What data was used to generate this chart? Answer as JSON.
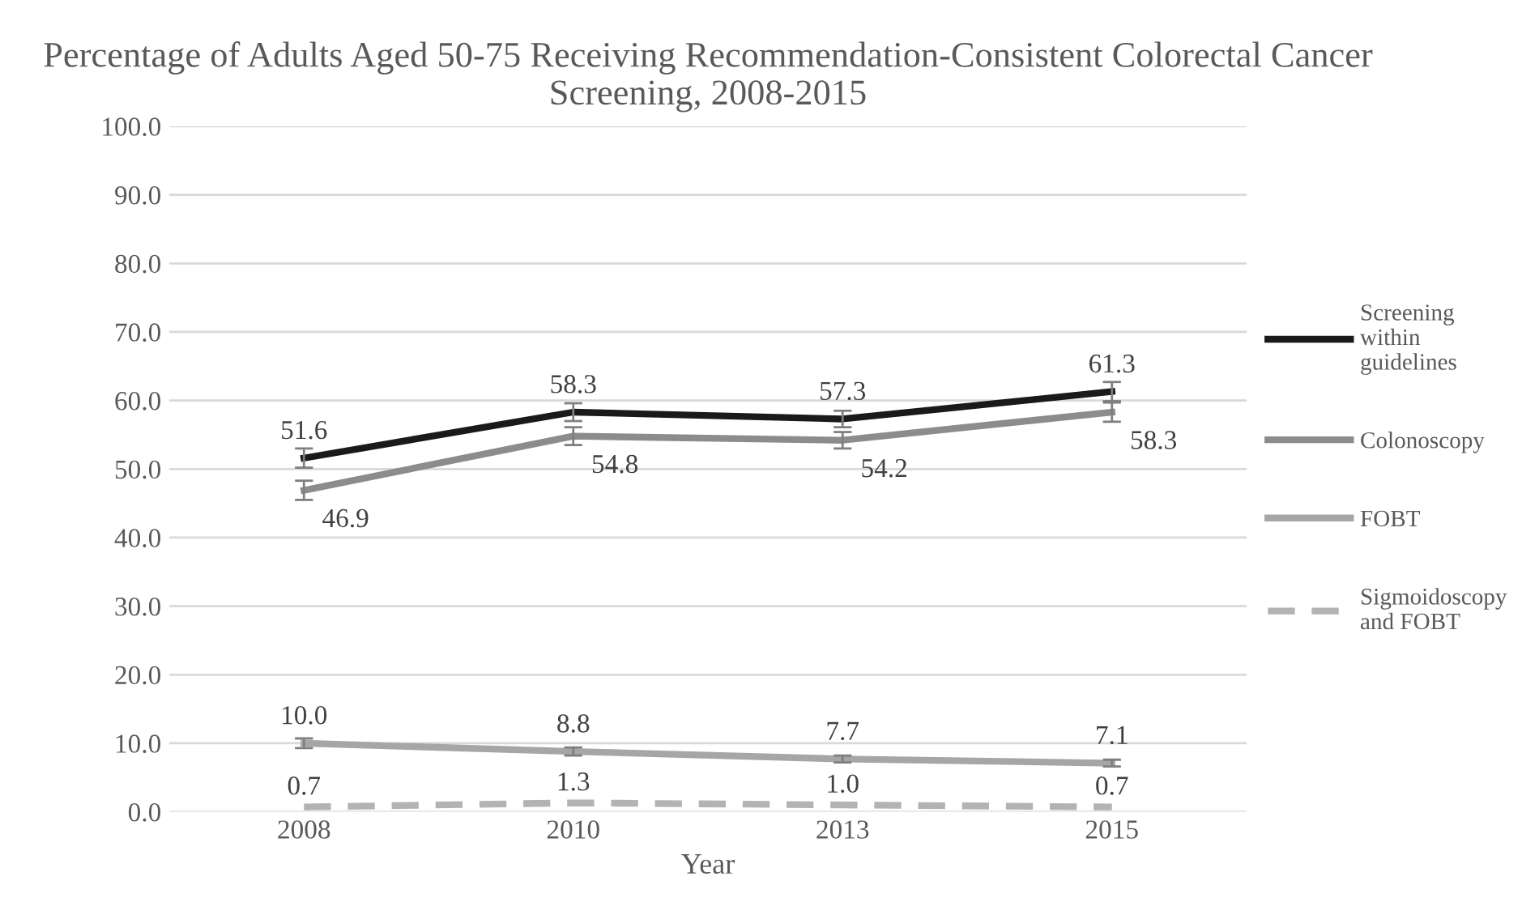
{
  "chart_data": {
    "type": "line",
    "title": "Percentage of Adults Aged 50-75 Receiving Recommendation-Consistent Colorectal Cancer Screening, 2008-2015",
    "xlabel": "Year",
    "categories": [
      "2008",
      "2010",
      "2013",
      "2015"
    ],
    "series": [
      {
        "name": "Screening within guidelines",
        "color": "#1a1a1a",
        "values": [
          51.6,
          58.3,
          57.3,
          61.3
        ],
        "value_labels": [
          "51.6",
          "58.3",
          "57.3",
          "61.3"
        ],
        "errors": [
          1.4,
          1.3,
          1.2,
          1.4
        ]
      },
      {
        "name": "Colonoscopy",
        "color": "#8c8c8c",
        "values": [
          46.9,
          54.8,
          54.2,
          58.3
        ],
        "value_labels": [
          "46.9",
          "54.8",
          "54.2",
          "58.3"
        ],
        "errors": [
          1.4,
          1.3,
          1.2,
          1.4
        ]
      },
      {
        "name": "FOBT",
        "color": "#a6a6a6",
        "values": [
          10.0,
          8.8,
          7.7,
          7.1
        ],
        "value_labels": [
          "10.0",
          "8.8",
          "7.7",
          "7.1"
        ],
        "errors": [
          0.7,
          0.6,
          0.5,
          0.5
        ]
      },
      {
        "name": "Sigmoidoscopy and FOBT",
        "color": "#b3b3b3",
        "values": [
          0.7,
          1.3,
          1.0,
          0.7
        ],
        "value_labels": [
          "0.7",
          "1.3",
          "1.0",
          "0.7"
        ],
        "line_style": "dashed"
      }
    ],
    "ylim": [
      0,
      100
    ],
    "yticks": [
      {
        "value": 0,
        "label": "0.0"
      },
      {
        "value": 10,
        "label": "10.0"
      },
      {
        "value": 20,
        "label": "20.0"
      },
      {
        "value": 30,
        "label": "30.0"
      },
      {
        "value": 40,
        "label": "40.0"
      },
      {
        "value": 50,
        "label": "50.0"
      },
      {
        "value": 60,
        "label": "60.0"
      },
      {
        "value": 70,
        "label": "70.0"
      },
      {
        "value": 80,
        "label": "80.0"
      },
      {
        "value": 90,
        "label": "90.0"
      },
      {
        "value": 100,
        "label": "100.0"
      }
    ],
    "grid": "y",
    "legend": "right",
    "marker": "none",
    "line_style": "solid"
  }
}
